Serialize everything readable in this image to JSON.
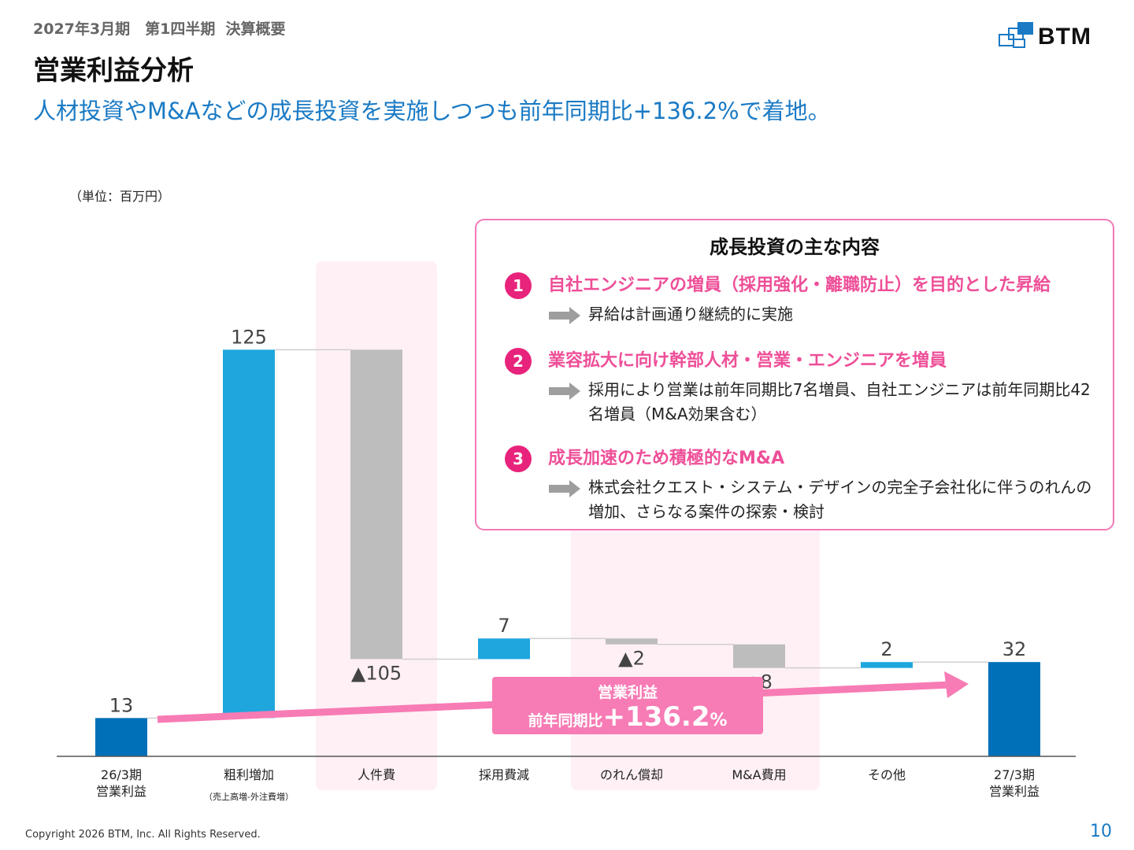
{
  "header": {
    "period": "2027年3月期　第1四半期  決算概要",
    "title": "営業利益分析",
    "subtitle": "人材投資やM&Aなどの成長投資を実施しつつも前年同期比+136.2%で着地。",
    "logo_text": "BTM"
  },
  "unit_label": "（単位：百万円）",
  "growth_box": {
    "heading": "成長投資の主な内容",
    "items": [
      {
        "number": "1",
        "headline": "自社エンジニアの増員（採用強化・離職防止）を目的とした昇給",
        "detail": "昇給は計画通り継続的に実施"
      },
      {
        "number": "2",
        "headline": "業容拡大に向け幹部人材・営業・エンジニアを増員",
        "detail": "採用により営業は前年同期比7名増員、自社エンジニアは前年同期比42名増員（M&A効果含む）"
      },
      {
        "number": "3",
        "headline": "成長加速のため積極的なM&A",
        "detail": "株式会社クエスト・システム・デザインの完全子会社化に伴うのれんの増加、さらなる案件の探索・検討"
      }
    ]
  },
  "callout": {
    "line1": "営業利益",
    "line2_prefix": "前年同期比",
    "line2_value": "+136.2",
    "line2_unit": "%"
  },
  "chart_data": {
    "type": "waterfall",
    "ylim": [
      0,
      140
    ],
    "categories": [
      {
        "label": "26/3期\n営業利益",
        "note": ""
      },
      {
        "label": "粗利増加",
        "note": "（売上高増-外注費増）"
      },
      {
        "label": "人件費",
        "note": ""
      },
      {
        "label": "採用費減",
        "note": ""
      },
      {
        "label": "のれん償却",
        "note": ""
      },
      {
        "label": "M&A費用",
        "note": ""
      },
      {
        "label": "その他",
        "note": ""
      },
      {
        "label": "27/3期\n営業利益",
        "note": ""
      }
    ],
    "steps": [
      {
        "kind": "total",
        "value": 13,
        "label": "13"
      },
      {
        "kind": "delta",
        "value": 125,
        "label": "125"
      },
      {
        "kind": "delta",
        "value": -105,
        "label": "▲105"
      },
      {
        "kind": "delta",
        "value": 7,
        "label": "7"
      },
      {
        "kind": "delta",
        "value": -2,
        "label": "▲2"
      },
      {
        "kind": "delta",
        "value": -8,
        "label": "▲8"
      },
      {
        "kind": "delta",
        "value": 2,
        "label": "2"
      },
      {
        "kind": "total",
        "value": 32,
        "label": "32"
      }
    ],
    "highlighted_categories": [
      "人件費",
      "のれん償却",
      "M&A費用"
    ],
    "colors": {
      "total": "#0070b8",
      "increase": "#1ea6dd",
      "decrease": "#bdbdbd",
      "highlight_bg": "#fff0f5",
      "arrow": "#f77bb4"
    }
  },
  "footer": {
    "copyright": "Copyright 2026 BTM, Inc. All Rights Reserved.",
    "page_number": "10"
  }
}
